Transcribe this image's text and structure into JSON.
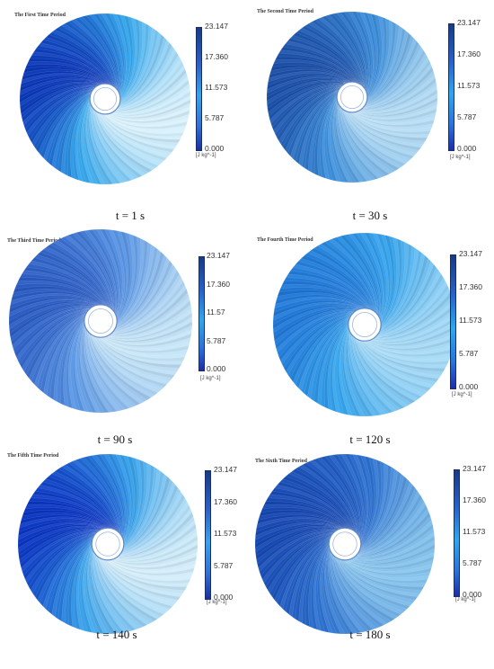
{
  "panels": [
    {
      "title": "The First Time Period",
      "time": "t = 1 s",
      "ticks": [
        "23.147",
        "17.360",
        "11.573",
        "5.787",
        "0.000"
      ],
      "unit": "[J kg^-1]",
      "colors": {
        "light": "#d9f2fc",
        "mid": "#35a9ee",
        "dark": "#0a37b8"
      }
    },
    {
      "title": "The Second Time Period",
      "time": "t = 30 s",
      "ticks": [
        "23.147",
        "17.360",
        "11.573",
        "5.787",
        "0.000"
      ],
      "unit": "[J kg^-1]",
      "colors": {
        "light": "#b8dff5",
        "mid": "#3b8fdc",
        "dark": "#1a4fa8"
      }
    },
    {
      "title": "The Third Time Period",
      "time": "t = 90 s",
      "ticks": [
        "23.147",
        "17.360",
        "11.57",
        "5.787",
        "0.000"
      ],
      "unit": "[J kg^-1]",
      "colors": {
        "light": "#c8e7f8",
        "mid": "#5b98e6",
        "dark": "#2a5cc4"
      }
    },
    {
      "title": "The Fourth Time Period",
      "time": "t = 120 s",
      "ticks": [
        "23.147",
        "17.360",
        "11.573",
        "5.787",
        "0.000"
      ],
      "unit": "[J kg^-1]",
      "colors": {
        "light": "#a8dcf7",
        "mid": "#36a6ee",
        "dark": "#2079d8"
      }
    },
    {
      "title": "The Fifth Time Period",
      "time": "t = 140 s",
      "ticks": [
        "23.147",
        "17.360",
        "11.573",
        "5.787",
        "0.000"
      ],
      "unit": "[J kg^-1]",
      "colors": {
        "light": "#d4eefa",
        "mid": "#37a4ec",
        "dark": "#0a35c2"
      }
    },
    {
      "title": "The Sixth Time Period",
      "time": "t = 180 s",
      "ticks": [
        "23.147",
        "17.360",
        "11.573",
        "5.787",
        "0.000"
      ],
      "unit": "[J kg^-1]",
      "colors": {
        "light": "#88c6ee",
        "mid": "#2c72d2",
        "dark": "#1648b2"
      }
    }
  ],
  "colorbar": {
    "top": "#173a86",
    "upper": "#2a62c8",
    "middle": "#32a6ec",
    "lower": "#2d72d8",
    "bottom": "#1b2fa6"
  }
}
